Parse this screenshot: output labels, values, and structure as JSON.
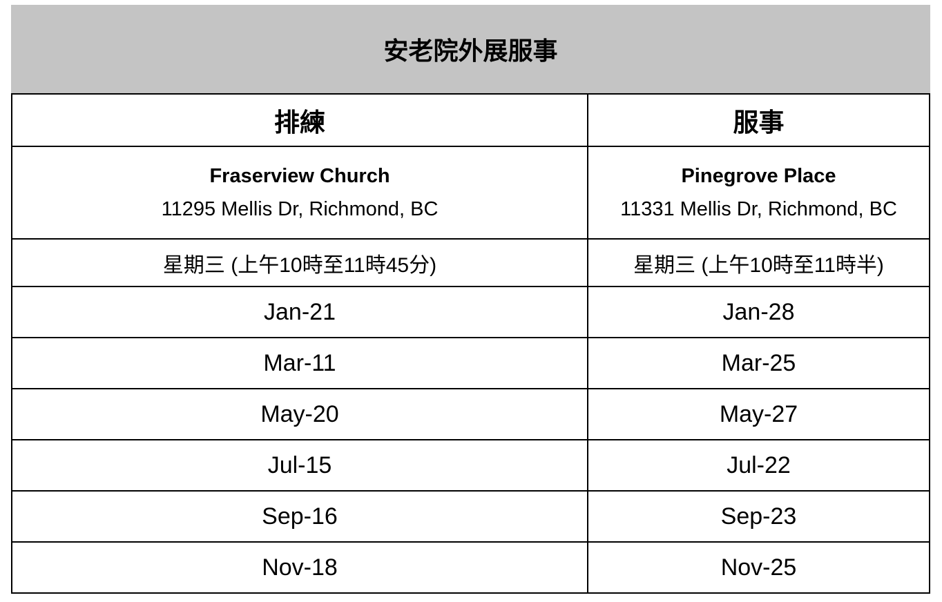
{
  "title": "安老院外展服事",
  "columns": [
    {
      "header": "排練",
      "location_name": "Fraserview Church",
      "address": "11295 Mellis Dr, Richmond, BC",
      "time": "星期三 (上午10時至11時45分)"
    },
    {
      "header": "服事",
      "location_name": "Pinegrove Place",
      "address": "11331 Mellis Dr, Richmond, BC",
      "time": "星期三  (上午10時至11時半)"
    }
  ],
  "dates": [
    [
      "Jan-21",
      "Jan-28"
    ],
    [
      "Mar-11",
      "Mar-25"
    ],
    [
      "May-20",
      "May-27"
    ],
    [
      "Jul-15",
      "Jul-22"
    ],
    [
      "Sep-16",
      "Sep-23"
    ],
    [
      "Nov-18",
      "Nov-25"
    ]
  ],
  "colors": {
    "title_background": "#c4c4c4",
    "border": "#000000"
  }
}
